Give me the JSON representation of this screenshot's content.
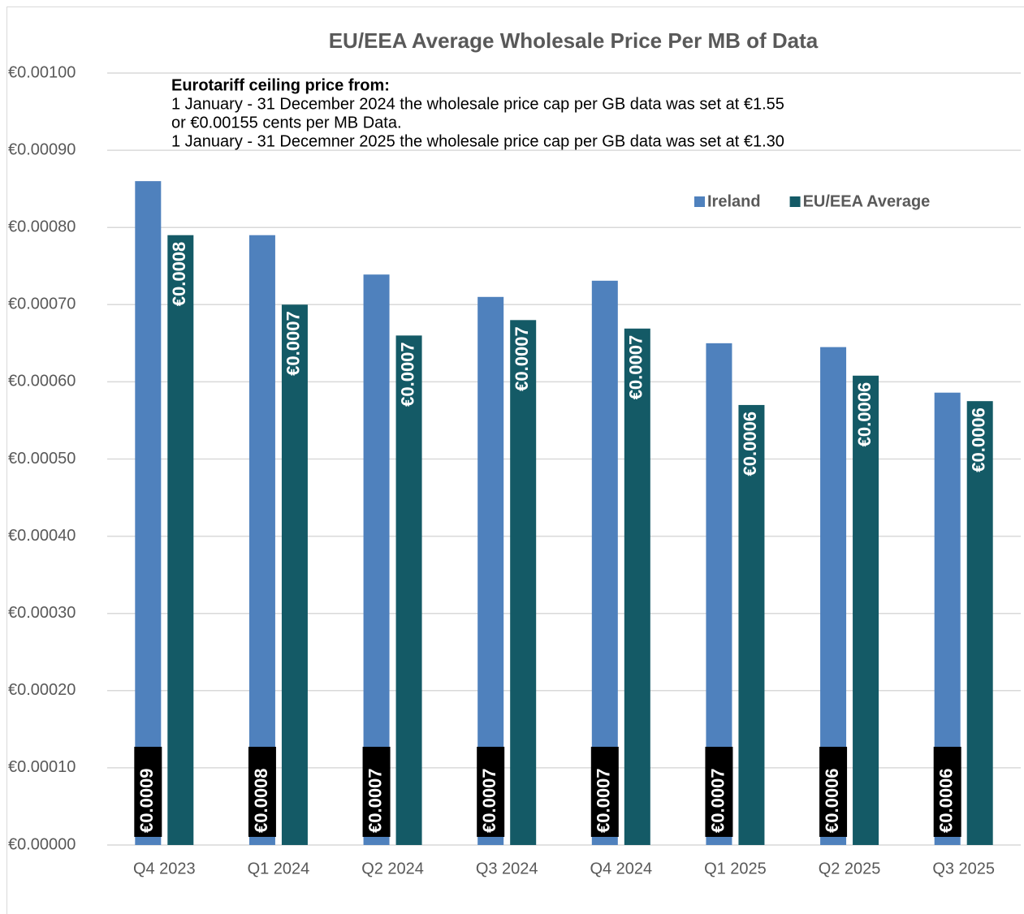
{
  "chart_data": {
    "type": "bar",
    "title": "EU/EEA Average Wholesale Price Per MB of Data",
    "annotations": [
      "Eurotariff ceiling price from:",
      "1 January - 31 December 2024  the wholesale price cap per GB data was set at €1.55",
      " or €0.00155 cents  per MB Data.",
      "1 January - 31 Decemner 2025 the wholesale price cap per GB data was set at €1.30"
    ],
    "categories": [
      "Q4 2023",
      "Q1 2024",
      "Q2 2024",
      "Q3 2024",
      "Q4 2024",
      "Q1 2025",
      "Q2 2025",
      "Q3 2025"
    ],
    "series": [
      {
        "name": "Ireland",
        "color": "#4f81bd",
        "values": [
          0.00086,
          0.00079,
          0.000739,
          0.00071,
          0.000731,
          0.00065,
          0.000645,
          0.000586
        ],
        "value_labels": [
          "€0.0009",
          "€0.0008",
          "€0.0007",
          "€0.0007",
          "€0.0007",
          "€0.0007",
          "€0.0006",
          "€0.0006"
        ]
      },
      {
        "name": "EU/EEA Average",
        "color": "#145a66",
        "values": [
          0.00079,
          0.0007,
          0.00066,
          0.00068,
          0.000669,
          0.00057,
          0.000608,
          0.000575
        ],
        "value_labels": [
          "€0.0008",
          "€0.0007",
          "€0.0007",
          "€0.0007",
          "€0.0007",
          "€0.0006",
          "€0.0006",
          "€0.0006"
        ]
      }
    ],
    "ylim": [
      0,
      0.001
    ],
    "yticks": [
      {
        "value": 0,
        "label": "€0.00000"
      },
      {
        "value": 0.0001,
        "label": "€0.00010"
      },
      {
        "value": 0.0002,
        "label": "€0.00020"
      },
      {
        "value": 0.0003,
        "label": "€0.00030"
      },
      {
        "value": 0.0004,
        "label": "€0.00040"
      },
      {
        "value": 0.0005,
        "label": "€0.00050"
      },
      {
        "value": 0.0006,
        "label": "€0.00060"
      },
      {
        "value": 0.0007,
        "label": "€0.00070"
      },
      {
        "value": 0.0008,
        "label": "€0.00080"
      },
      {
        "value": 0.0009,
        "label": "€0.00090"
      },
      {
        "value": 0.001,
        "label": "€0.00100"
      }
    ],
    "grid": true,
    "legend": "upper right"
  }
}
